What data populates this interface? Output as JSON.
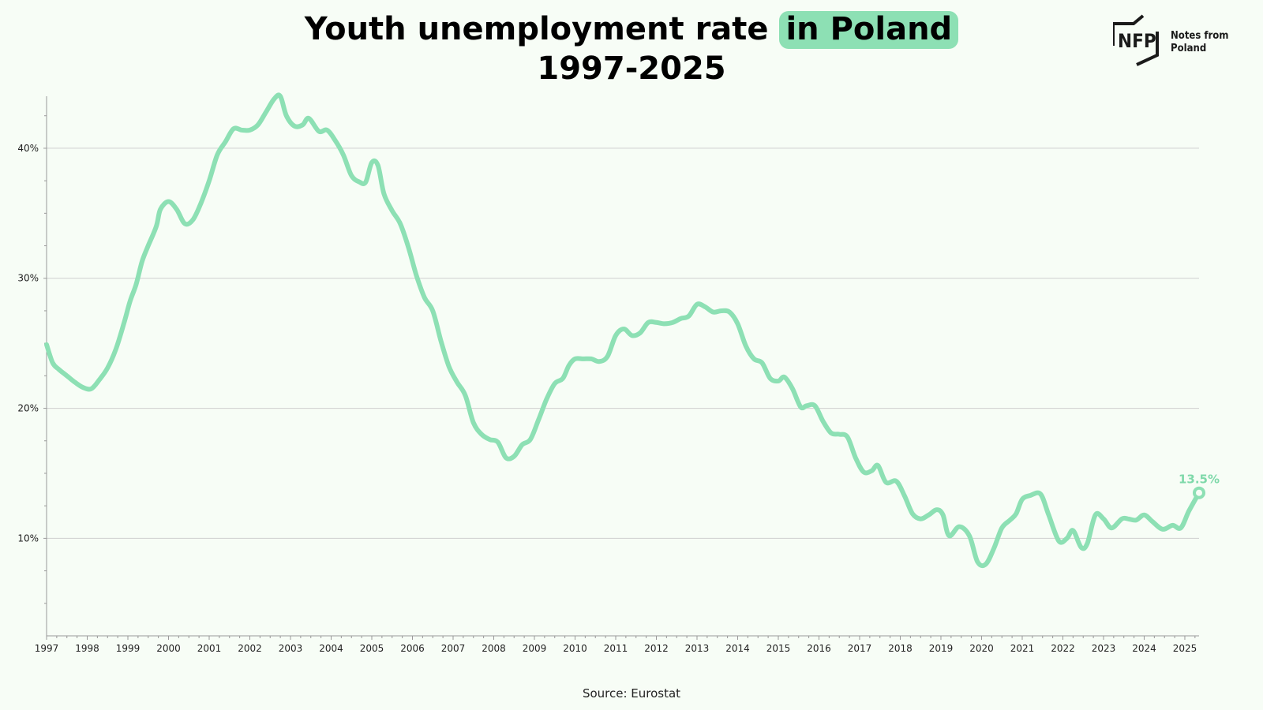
{
  "title": {
    "line1_part1": "Youth unemployment rate",
    "line1_highlight": "in Poland",
    "line2": "1997-2025"
  },
  "logo": {
    "mark": "NFP",
    "text_line1": "Notes from",
    "text_line2": "Poland"
  },
  "source": "Source: Eurostat",
  "colors": {
    "line": "#8de0b4",
    "highlight": "#8de0b4",
    "label": "#7fd9aa",
    "grid": "#cfcfcf",
    "axis": "#999999",
    "background": "#f7fdf6"
  },
  "chart_data": {
    "type": "line",
    "title": "Youth unemployment rate in Poland 1997-2025",
    "xlabel": "",
    "ylabel": "",
    "xlim": [
      1997,
      2025.35
    ],
    "ylim": [
      2.5,
      44
    ],
    "y_ticks": [
      10,
      20,
      30,
      40
    ],
    "y_tick_labels": [
      "10%",
      "20%",
      "30%",
      "40%"
    ],
    "x_ticks": [
      1997,
      1998,
      1999,
      2000,
      2001,
      2002,
      2003,
      2004,
      2005,
      2006,
      2007,
      2008,
      2009,
      2010,
      2011,
      2012,
      2013,
      2014,
      2015,
      2016,
      2017,
      2018,
      2019,
      2020,
      2021,
      2022,
      2023,
      2024,
      2025
    ],
    "grid": "horizontal",
    "legend": "none",
    "series": [
      {
        "values": [
          [
            1997.0,
            24.9
          ],
          [
            1997.15,
            23.5
          ],
          [
            1997.3,
            23.0
          ],
          [
            1997.5,
            22.5
          ],
          [
            1997.7,
            22.0
          ],
          [
            1997.9,
            21.6
          ],
          [
            1998.1,
            21.5
          ],
          [
            1998.3,
            22.2
          ],
          [
            1998.5,
            23.1
          ],
          [
            1998.7,
            24.5
          ],
          [
            1998.9,
            26.5
          ],
          [
            1999.05,
            28.2
          ],
          [
            1999.2,
            29.5
          ],
          [
            1999.35,
            31.3
          ],
          [
            1999.5,
            32.5
          ],
          [
            1999.7,
            34.0
          ],
          [
            1999.8,
            35.3
          ],
          [
            2000.0,
            35.9
          ],
          [
            2000.2,
            35.3
          ],
          [
            2000.4,
            34.2
          ],
          [
            2000.6,
            34.5
          ],
          [
            2000.8,
            35.8
          ],
          [
            2001.0,
            37.5
          ],
          [
            2001.2,
            39.5
          ],
          [
            2001.4,
            40.5
          ],
          [
            2001.6,
            41.5
          ],
          [
            2001.8,
            41.4
          ],
          [
            2002.0,
            41.4
          ],
          [
            2002.2,
            41.8
          ],
          [
            2002.4,
            42.8
          ],
          [
            2002.6,
            43.8
          ],
          [
            2002.75,
            44.0
          ],
          [
            2002.9,
            42.5
          ],
          [
            2003.1,
            41.7
          ],
          [
            2003.3,
            41.8
          ],
          [
            2003.45,
            42.3
          ],
          [
            2003.7,
            41.3
          ],
          [
            2003.9,
            41.4
          ],
          [
            2004.1,
            40.6
          ],
          [
            2004.3,
            39.5
          ],
          [
            2004.5,
            37.9
          ],
          [
            2004.7,
            37.4
          ],
          [
            2004.85,
            37.4
          ],
          [
            2005.0,
            38.9
          ],
          [
            2005.15,
            38.7
          ],
          [
            2005.3,
            36.5
          ],
          [
            2005.5,
            35.2
          ],
          [
            2005.7,
            34.2
          ],
          [
            2005.9,
            32.4
          ],
          [
            2006.1,
            30.2
          ],
          [
            2006.3,
            28.5
          ],
          [
            2006.5,
            27.5
          ],
          [
            2006.7,
            25.2
          ],
          [
            2006.9,
            23.2
          ],
          [
            2007.1,
            22.0
          ],
          [
            2007.3,
            21.0
          ],
          [
            2007.5,
            18.9
          ],
          [
            2007.7,
            18.0
          ],
          [
            2007.9,
            17.6
          ],
          [
            2008.1,
            17.4
          ],
          [
            2008.3,
            16.2
          ],
          [
            2008.5,
            16.3
          ],
          [
            2008.7,
            17.2
          ],
          [
            2008.9,
            17.6
          ],
          [
            2009.1,
            19.1
          ],
          [
            2009.3,
            20.7
          ],
          [
            2009.5,
            21.9
          ],
          [
            2009.7,
            22.3
          ],
          [
            2009.85,
            23.3
          ],
          [
            2010.0,
            23.8
          ],
          [
            2010.2,
            23.8
          ],
          [
            2010.4,
            23.8
          ],
          [
            2010.6,
            23.6
          ],
          [
            2010.8,
            24.0
          ],
          [
            2011.0,
            25.6
          ],
          [
            2011.2,
            26.1
          ],
          [
            2011.4,
            25.6
          ],
          [
            2011.6,
            25.8
          ],
          [
            2011.8,
            26.6
          ],
          [
            2012.0,
            26.6
          ],
          [
            2012.2,
            26.5
          ],
          [
            2012.4,
            26.6
          ],
          [
            2012.6,
            26.9
          ],
          [
            2012.8,
            27.1
          ],
          [
            2013.0,
            28.0
          ],
          [
            2013.2,
            27.8
          ],
          [
            2013.4,
            27.4
          ],
          [
            2013.6,
            27.5
          ],
          [
            2013.8,
            27.4
          ],
          [
            2014.0,
            26.5
          ],
          [
            2014.2,
            24.8
          ],
          [
            2014.4,
            23.8
          ],
          [
            2014.6,
            23.5
          ],
          [
            2014.8,
            22.3
          ],
          [
            2015.0,
            22.1
          ],
          [
            2015.15,
            22.4
          ],
          [
            2015.35,
            21.5
          ],
          [
            2015.55,
            20.1
          ],
          [
            2015.7,
            20.2
          ],
          [
            2015.9,
            20.2
          ],
          [
            2016.1,
            19.0
          ],
          [
            2016.3,
            18.1
          ],
          [
            2016.5,
            18.0
          ],
          [
            2016.7,
            17.8
          ],
          [
            2016.9,
            16.2
          ],
          [
            2017.1,
            15.1
          ],
          [
            2017.3,
            15.2
          ],
          [
            2017.45,
            15.6
          ],
          [
            2017.65,
            14.3
          ],
          [
            2017.9,
            14.4
          ],
          [
            2018.1,
            13.3
          ],
          [
            2018.3,
            11.9
          ],
          [
            2018.5,
            11.5
          ],
          [
            2018.7,
            11.8
          ],
          [
            2018.9,
            12.2
          ],
          [
            2019.05,
            11.8
          ],
          [
            2019.2,
            10.2
          ],
          [
            2019.45,
            10.9
          ],
          [
            2019.7,
            10.2
          ],
          [
            2019.9,
            8.2
          ],
          [
            2020.1,
            8.0
          ],
          [
            2020.3,
            9.2
          ],
          [
            2020.5,
            10.8
          ],
          [
            2020.7,
            11.4
          ],
          [
            2020.85,
            11.9
          ],
          [
            2021.0,
            13.0
          ],
          [
            2021.2,
            13.3
          ],
          [
            2021.45,
            13.4
          ],
          [
            2021.65,
            11.8
          ],
          [
            2021.9,
            9.8
          ],
          [
            2022.1,
            10.0
          ],
          [
            2022.25,
            10.6
          ],
          [
            2022.45,
            9.3
          ],
          [
            2022.6,
            9.6
          ],
          [
            2022.8,
            11.8
          ],
          [
            2023.0,
            11.5
          ],
          [
            2023.2,
            10.8
          ],
          [
            2023.45,
            11.5
          ],
          [
            2023.6,
            11.5
          ],
          [
            2023.8,
            11.4
          ],
          [
            2024.0,
            11.8
          ],
          [
            2024.2,
            11.3
          ],
          [
            2024.45,
            10.7
          ],
          [
            2024.7,
            11.0
          ],
          [
            2024.9,
            10.8
          ],
          [
            2025.1,
            12.1
          ],
          [
            2025.35,
            13.5
          ]
        ]
      }
    ],
    "annotations": [
      {
        "text": "13.5%",
        "x": 2025.35,
        "y": 13.5
      }
    ]
  }
}
